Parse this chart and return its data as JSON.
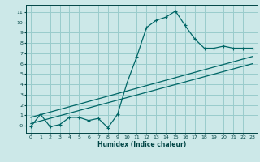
{
  "title": "",
  "xlabel": "Humidex (Indice chaleur)",
  "ylabel": "",
  "bg_color": "#cce8e8",
  "line_color": "#006666",
  "grid_color": "#99cccc",
  "xlim": [
    -0.5,
    23.5
  ],
  "ylim": [
    -0.7,
    11.7
  ],
  "xticks": [
    0,
    1,
    2,
    3,
    4,
    5,
    6,
    7,
    8,
    9,
    10,
    11,
    12,
    13,
    14,
    15,
    16,
    17,
    18,
    19,
    20,
    21,
    22,
    23
  ],
  "yticks": [
    0,
    1,
    2,
    3,
    4,
    5,
    6,
    7,
    8,
    9,
    10,
    11
  ],
  "ytick_labels": [
    "-0",
    "1",
    "2",
    "3",
    "4",
    "5",
    "6",
    "7",
    "8",
    "9",
    "10",
    "11"
  ],
  "main_x": [
    0,
    1,
    2,
    3,
    4,
    5,
    6,
    7,
    8,
    9,
    10,
    11,
    12,
    13,
    14,
    15,
    16,
    17,
    18,
    19,
    20,
    21,
    22,
    23
  ],
  "main_y": [
    -0.1,
    1.1,
    -0.1,
    0.1,
    0.8,
    0.8,
    0.5,
    0.7,
    -0.2,
    1.1,
    4.2,
    6.7,
    9.5,
    10.2,
    10.5,
    11.1,
    9.7,
    8.4,
    7.5,
    7.5,
    7.7,
    7.5,
    7.5,
    7.5
  ],
  "line1_x": [
    0,
    23
  ],
  "line1_y": [
    0.2,
    6.0
  ],
  "line2_x": [
    0,
    23
  ],
  "line2_y": [
    0.8,
    6.7
  ]
}
